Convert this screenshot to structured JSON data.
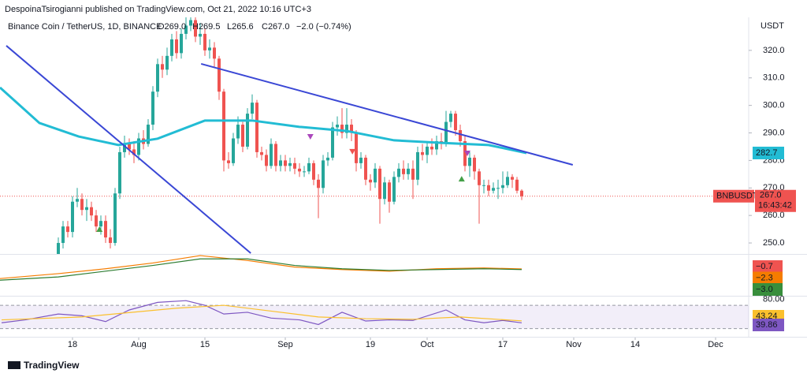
{
  "header": {
    "published": "DespoinaTsirogianni published on TradingView.com, Oct 21, 2022 10:16 UTC+3"
  },
  "footer": {
    "brand": "TradingView"
  },
  "chart_data": {
    "type": "candlestick",
    "symbol": "Binance Coin / TetherUS, 1D, BINANCE",
    "ohlc": [
      "O269.0",
      "H269.5",
      "L265.6",
      "C267.0"
    ],
    "change": "−2.0 (−0.74%)",
    "currency": "USDT",
    "ticker": "BNBUSDT",
    "countdown": "16:43:42",
    "last_price": {
      "value": 267,
      "label": "267.0"
    },
    "up_color": "#26a69a",
    "down_color": "#ef5350",
    "x": [
      15,
      16,
      17,
      18,
      19,
      20,
      21,
      22,
      23,
      24,
      25,
      26,
      27,
      28,
      29,
      30,
      31,
      32,
      33,
      34,
      35,
      36,
      37,
      38,
      39,
      40,
      41,
      42,
      43,
      44,
      45,
      46,
      47,
      48,
      49,
      50,
      51,
      52,
      53,
      54,
      55,
      56,
      57,
      58,
      59,
      60,
      61,
      62,
      63,
      64,
      65,
      66,
      67,
      68,
      69,
      70,
      71,
      72,
      73,
      74,
      75,
      76,
      77,
      78,
      79,
      80,
      81,
      82,
      83,
      84,
      85,
      86,
      87,
      88,
      89,
      90,
      91,
      92,
      93,
      94,
      95,
      96,
      97,
      98,
      99,
      100,
      101,
      102,
      103,
      104,
      105,
      106,
      107,
      108,
      109,
      110,
      111,
      112,
      113
    ],
    "open": [
      245,
      250,
      256,
      254,
      265,
      266,
      262,
      263,
      260,
      256,
      258,
      252,
      250,
      268,
      283,
      286,
      284,
      282,
      288,
      286,
      293,
      305,
      315,
      313,
      318,
      324,
      319,
      326,
      329,
      331,
      325,
      326,
      320,
      321,
      317,
      305,
      280,
      279,
      288,
      293,
      285,
      297,
      301,
      283,
      282,
      278,
      286,
      278,
      280,
      278,
      279,
      277,
      276,
      276,
      279,
      273,
      270,
      280,
      281,
      292,
      293,
      290,
      293,
      290,
      279,
      281,
      273,
      272,
      277,
      266,
      272,
      265,
      274,
      277,
      275,
      277,
      273,
      283,
      282,
      285,
      284,
      287,
      286,
      294,
      297,
      291,
      287,
      278,
      281,
      276,
      271,
      271,
      269,
      270,
      270,
      271,
      274,
      273,
      269
    ],
    "high": [
      252,
      258,
      258,
      267,
      270,
      268,
      266,
      265,
      262,
      260,
      260,
      255,
      270,
      285,
      289,
      288,
      287,
      290,
      291,
      295,
      307,
      317,
      318,
      321,
      326,
      327,
      328,
      332,
      334,
      333,
      330,
      328,
      324,
      323,
      318,
      306,
      283,
      290,
      296,
      294,
      299,
      304,
      302,
      285,
      284,
      288,
      287,
      282,
      282,
      281,
      281,
      279,
      278,
      281,
      280,
      275,
      282,
      283,
      294,
      296,
      299,
      299,
      295,
      291,
      283,
      282,
      275,
      279,
      278,
      274,
      273,
      276,
      279,
      280,
      279,
      280,
      285,
      286,
      287,
      288,
      289,
      290,
      298,
      298,
      298,
      293,
      289,
      283,
      282,
      277,
      273,
      273,
      272,
      273,
      276,
      276,
      275,
      274,
      269.5
    ],
    "low": [
      243,
      248,
      252,
      252,
      263,
      260,
      258,
      258,
      254,
      253,
      250,
      248,
      249,
      266,
      281,
      282,
      279,
      280,
      284,
      285,
      291,
      303,
      310,
      311,
      316,
      317,
      317,
      324,
      327,
      323,
      322,
      318,
      317,
      314,
      302,
      276,
      277,
      278,
      286,
      283,
      284,
      295,
      281,
      280,
      276,
      277,
      276,
      276,
      276,
      276,
      275,
      274,
      274,
      275,
      271,
      259,
      268,
      278,
      280,
      289,
      288,
      288,
      287,
      276,
      277,
      271,
      269,
      270,
      257,
      264,
      261,
      264,
      272,
      273,
      273,
      266,
      271,
      280,
      279,
      282,
      282,
      284,
      285,
      292,
      289,
      285,
      276,
      274,
      273,
      257,
      268,
      267,
      268,
      266,
      268,
      270,
      270,
      268,
      265.6
    ],
    "close": [
      250,
      256,
      254,
      265,
      266,
      262,
      263,
      260,
      256,
      258,
      252,
      250,
      268,
      283,
      286,
      284,
      282,
      288,
      286,
      293,
      305,
      315,
      313,
      318,
      324,
      319,
      326,
      329,
      331,
      325,
      326,
      320,
      321,
      317,
      305,
      280,
      279,
      288,
      293,
      285,
      297,
      301,
      283,
      282,
      278,
      286,
      278,
      280,
      278,
      279,
      277,
      276,
      276,
      279,
      273,
      270,
      280,
      281,
      292,
      293,
      290,
      293,
      290,
      279,
      281,
      273,
      272,
      277,
      266,
      272,
      265,
      274,
      277,
      275,
      277,
      273,
      283,
      282,
      285,
      284,
      287,
      286,
      294,
      297,
      291,
      287,
      278,
      281,
      276,
      271,
      271,
      269,
      270,
      270,
      271,
      274,
      273,
      269,
      267
    ],
    "xlim": [
      2.667,
      161
    ],
    "xticks": [
      {
        "value": 18,
        "label": "18"
      },
      {
        "value": 32,
        "label": "Aug"
      },
      {
        "value": 46,
        "label": "15"
      },
      {
        "value": 63,
        "label": "Sep"
      },
      {
        "value": 81,
        "label": "19"
      },
      {
        "value": 93,
        "label": "Oct"
      },
      {
        "value": 109,
        "label": "17"
      },
      {
        "value": 124,
        "label": "Nov"
      },
      {
        "value": 137,
        "label": "14"
      },
      {
        "value": 154,
        "label": "Dec"
      }
    ],
    "ylim": [
      246,
      332
    ],
    "yticks": [
      {
        "value": 250,
        "label": "250.0"
      },
      {
        "value": 260,
        "label": "260.0"
      },
      {
        "value": 270,
        "label": "270.0"
      },
      {
        "value": 280,
        "label": "280.0"
      },
      {
        "value": 290,
        "label": "290.0"
      },
      {
        "value": 300,
        "label": "300.0"
      },
      {
        "value": 310,
        "label": "310.0"
      },
      {
        "value": 320,
        "label": "320.0"
      }
    ],
    "moving_average": {
      "color": "#22bcd4",
      "x": [
        2.667,
        11,
        19.3,
        27.7,
        36,
        46,
        56,
        66,
        76,
        86,
        96,
        106,
        114
      ],
      "values": [
        306.5,
        293.6,
        288.7,
        285.6,
        287.9,
        294.5,
        294.5,
        292.2,
        290.7,
        287.3,
        286.4,
        285.6,
        282.7
      ],
      "last": {
        "value": 282.7,
        "label": "282.7"
      }
    },
    "trendlines": [
      {
        "color": "#3a47d5",
        "x": [
          4,
          55.7
        ],
        "values": [
          321.7,
          246.3
        ]
      },
      {
        "color": "#3a47d5",
        "x": [
          45.2,
          123.8
        ],
        "values": [
          315.1,
          278.4
        ]
      }
    ],
    "signals": [
      {
        "x": 23.7,
        "value": 254.9,
        "shape": "up",
        "color": "#43a047"
      },
      {
        "x": 68.3,
        "value": 288.7,
        "shape": "down",
        "color": "#ab47bc"
      },
      {
        "x": 77.2,
        "value": 283.3,
        "shape": "down",
        "color": "#ef5350"
      },
      {
        "x": 101.5,
        "value": 282.7,
        "shape": "down",
        "color": "#ab47bc"
      },
      {
        "x": 100.3,
        "value": 273.2,
        "shape": "up",
        "color": "#43a047"
      }
    ],
    "macd": {
      "ylim": [
        -34,
        16
      ],
      "lines": [
        {
          "color": "#f57c00",
          "x": [
            2.667,
            15,
            25,
            35,
            45,
            55,
            65,
            75,
            85,
            95,
            105,
            113
          ],
          "values": [
            -14,
            -8,
            -2,
            5,
            14,
            8,
            0,
            -3,
            -5,
            -2,
            -1,
            -2.3
          ]
        },
        {
          "color": "#2e7d32",
          "x": [
            2.667,
            15,
            25,
            35,
            45,
            55,
            65,
            75,
            85,
            95,
            105,
            113
          ],
          "values": [
            -16,
            -12,
            -5,
            2,
            10,
            10,
            2,
            -2,
            -4,
            -3,
            -2,
            -3
          ]
        }
      ],
      "tags": [
        {
          "label": "−0.7",
          "color": "#ef5350"
        },
        {
          "label": "−2.3",
          "color": "#f57c00"
        },
        {
          "label": "−3.0",
          "color": "#388e3c"
        }
      ]
    },
    "rsi": {
      "ylim": [
        20,
        85
      ],
      "yticks": [
        {
          "value": 80,
          "label": "80.00"
        }
      ],
      "band": [
        30,
        70
      ],
      "lines": [
        {
          "color": "#7e57c2",
          "x": [
            3,
            8,
            15,
            20,
            25,
            30,
            36,
            42,
            46,
            50,
            55,
            60,
            66,
            70,
            75,
            80,
            85,
            90,
            97,
            101,
            105,
            109,
            113
          ],
          "values": [
            40,
            45,
            55,
            52,
            42,
            62,
            75,
            78,
            70,
            55,
            58,
            48,
            45,
            37,
            58,
            43,
            45,
            44,
            62,
            45,
            40,
            44,
            39.86
          ]
        },
        {
          "color": "#fbc02d",
          "x": [
            3,
            20,
            40,
            50,
            60,
            70,
            80,
            90,
            100,
            113
          ],
          "values": [
            45,
            50,
            65,
            70,
            60,
            50,
            47,
            46,
            50,
            43.24
          ]
        }
      ],
      "tags": [
        {
          "label": "43.24",
          "color": "#fbc02d"
        },
        {
          "label": "39.86",
          "color": "#7e57c2"
        }
      ]
    }
  }
}
